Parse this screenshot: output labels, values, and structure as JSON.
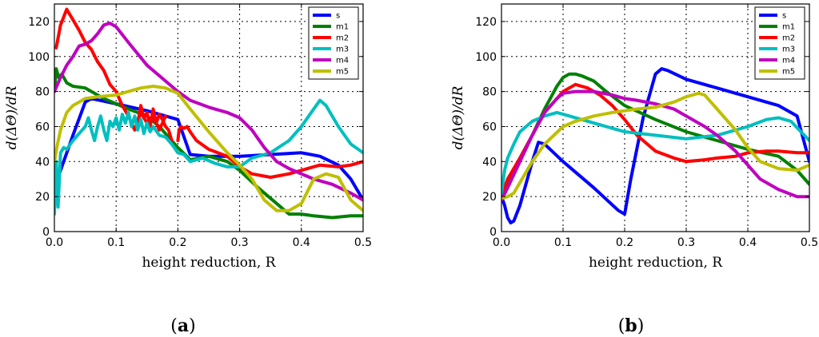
{
  "chart_data": [
    {
      "type": "line",
      "panel_label": "(a)",
      "xlabel": "height reduction, R",
      "ylabel": "d(ΔΘ)/dR",
      "xlim": [
        0,
        0.5
      ],
      "ylim": [
        0,
        130
      ],
      "xticks": [
        0.0,
        0.1,
        0.2,
        0.3,
        0.4,
        0.5
      ],
      "xtick_labels": [
        "0.0",
        "0.1",
        "0.2",
        "0.3",
        "0.4",
        "0.5"
      ],
      "yticks": [
        0,
        20,
        40,
        60,
        80,
        100,
        120
      ],
      "ytick_labels": [
        "0",
        "20",
        "40",
        "60",
        "80",
        "100",
        "120"
      ],
      "grid": true,
      "legend_position": "top-right",
      "series": [
        {
          "name": "s",
          "color": "#0000ff",
          "x": [
            0,
            0.01,
            0.03,
            0.05,
            0.06,
            0.1,
            0.15,
            0.2,
            0.22,
            0.25,
            0.3,
            0.35,
            0.4,
            0.43,
            0.46,
            0.48,
            0.5
          ],
          "y": [
            24,
            35,
            55,
            74,
            76,
            73,
            69,
            64,
            44,
            43,
            43,
            44,
            45,
            43,
            38,
            30,
            18
          ]
        },
        {
          "name": "m1",
          "color": "#008000",
          "x": [
            0,
            0.003,
            0.007,
            0.012,
            0.02,
            0.03,
            0.05,
            0.08,
            0.1,
            0.12,
            0.15,
            0.17,
            0.2,
            0.22,
            0.25,
            0.28,
            0.3,
            0.33,
            0.35,
            0.38,
            0.4,
            0.42,
            0.45,
            0.48,
            0.5
          ],
          "y": [
            80,
            93,
            88,
            90,
            85,
            83,
            82,
            76,
            73,
            70,
            66,
            60,
            48,
            41,
            43,
            40,
            35,
            25,
            19,
            10,
            10,
            9,
            8,
            9,
            9
          ]
        },
        {
          "name": "m2",
          "color": "#ff0000",
          "x": [
            0.2,
            0.202,
            0.205,
            0.21,
            0.215,
            0.22,
            0.23,
            0.25,
            0.28,
            0.3,
            0.32,
            0.35,
            0.38,
            0.4,
            0.43,
            0.46,
            0.48,
            0.5
          ],
          "y": [
            52,
            58,
            60,
            59,
            60,
            57,
            52,
            47,
            43,
            37,
            33,
            31,
            33,
            35,
            38,
            37,
            38,
            40
          ]
        },
        {
          "name": "m3",
          "color": "#00bfbf",
          "x": [
            0,
            0.003,
            0.006,
            0.01,
            0.015,
            0.02,
            0.03,
            0.04,
            0.05,
            0.055,
            0.06,
            0.065,
            0.07,
            0.075,
            0.08,
            0.085,
            0.09,
            0.095,
            0.1,
            0.105,
            0.11,
            0.115,
            0.12,
            0.125,
            0.13,
            0.135,
            0.14,
            0.145,
            0.15,
            0.155,
            0.16,
            0.17,
            0.18,
            0.19,
            0.2,
            0.21,
            0.22,
            0.24,
            0.26,
            0.28,
            0.3,
            0.32,
            0.35,
            0.38,
            0.4,
            0.42,
            0.43,
            0.44,
            0.46,
            0.48,
            0.5
          ],
          "y": [
            10,
            40,
            14,
            45,
            48,
            47,
            52,
            56,
            60,
            65,
            58,
            52,
            60,
            66,
            58,
            52,
            63,
            60,
            65,
            58,
            67,
            62,
            68,
            60,
            66,
            58,
            64,
            56,
            62,
            57,
            60,
            55,
            54,
            50,
            45,
            44,
            40,
            42,
            39,
            37,
            37,
            42,
            45,
            52,
            60,
            70,
            75,
            72,
            60,
            50,
            45
          ]
        },
        {
          "name": "m4",
          "color": "#bf00bf",
          "x": [
            0,
            0.01,
            0.02,
            0.03,
            0.04,
            0.05,
            0.06,
            0.07,
            0.08,
            0.09,
            0.1,
            0.12,
            0.15,
            0.18,
            0.2,
            0.22,
            0.25,
            0.28,
            0.3,
            0.32,
            0.34,
            0.36,
            0.38,
            0.4,
            0.42,
            0.45,
            0.48,
            0.5
          ],
          "y": [
            80,
            88,
            95,
            100,
            106,
            107,
            109,
            113,
            118,
            119,
            117,
            108,
            95,
            86,
            80,
            75,
            71,
            68,
            65,
            58,
            48,
            40,
            36,
            33,
            30,
            27,
            22,
            18
          ]
        },
        {
          "name": "m5",
          "color": "#bfbf00",
          "x": [
            0,
            0.005,
            0.01,
            0.02,
            0.03,
            0.04,
            0.05,
            0.07,
            0.1,
            0.12,
            0.14,
            0.16,
            0.18,
            0.2,
            0.22,
            0.25,
            0.28,
            0.3,
            0.32,
            0.34,
            0.36,
            0.38,
            0.4,
            0.42,
            0.44,
            0.46,
            0.48,
            0.5
          ],
          "y": [
            40,
            50,
            58,
            68,
            72,
            74,
            76,
            77,
            78,
            80,
            82,
            83,
            82,
            79,
            70,
            57,
            45,
            38,
            30,
            18,
            12,
            12,
            16,
            30,
            33,
            31,
            18,
            12
          ]
        }
      ],
      "red_segments": [
        {
          "x": [
            0.003,
            0.01,
            0.02,
            0.03,
            0.04,
            0.05,
            0.06,
            0.07,
            0.08,
            0.09,
            0.1,
            0.11,
            0.12,
            0.13,
            0.14,
            0.15,
            0.16,
            0.17,
            0.18
          ],
          "y": [
            105,
            118,
            127,
            121,
            115,
            108,
            104,
            97,
            92,
            84,
            80,
            72,
            66,
            58,
            68,
            62,
            66,
            58,
            66
          ]
        },
        {
          "x": [
            0.135,
            0.14,
            0.145,
            0.15,
            0.155,
            0.16,
            0.165,
            0.17,
            0.175,
            0.18,
            0.185,
            0.19
          ],
          "y": [
            62,
            72,
            65,
            68,
            60,
            70,
            62,
            67,
            64,
            60,
            58,
            52
          ]
        }
      ]
    },
    {
      "type": "line",
      "panel_label": "(b)",
      "xlabel": "height reduction, R",
      "ylabel": "d(ΔΘ)/dR",
      "xlim": [
        0,
        0.5
      ],
      "ylim": [
        0,
        130
      ],
      "xticks": [
        0.0,
        0.1,
        0.2,
        0.3,
        0.4,
        0.5
      ],
      "xtick_labels": [
        "0.0",
        "0.1",
        "0.2",
        "0.3",
        "0.4",
        "0.5"
      ],
      "yticks": [
        0,
        20,
        40,
        60,
        80,
        100,
        120
      ],
      "ytick_labels": [
        "0",
        "20",
        "40",
        "60",
        "80",
        "100",
        "120"
      ],
      "grid": true,
      "legend_position": "top-right",
      "series": [
        {
          "name": "s",
          "color": "#0000ff",
          "x": [
            0,
            0.005,
            0.01,
            0.015,
            0.02,
            0.03,
            0.05,
            0.06,
            0.07,
            0.1,
            0.15,
            0.19,
            0.2,
            0.21,
            0.23,
            0.25,
            0.26,
            0.27,
            0.3,
            0.35,
            0.4,
            0.45,
            0.48,
            0.5
          ],
          "y": [
            20,
            15,
            8,
            5,
            6,
            15,
            40,
            51,
            50,
            40,
            25,
            12,
            10,
            30,
            65,
            90,
            93,
            92,
            87,
            82,
            77,
            72,
            66,
            40
          ]
        },
        {
          "name": "m1",
          "color": "#008000",
          "x": [
            0,
            0.01,
            0.03,
            0.05,
            0.07,
            0.09,
            0.1,
            0.11,
            0.12,
            0.13,
            0.15,
            0.17,
            0.2,
            0.25,
            0.3,
            0.35,
            0.4,
            0.45,
            0.48,
            0.5
          ],
          "y": [
            20,
            28,
            42,
            55,
            70,
            83,
            88,
            90,
            90,
            89,
            86,
            80,
            72,
            64,
            57,
            52,
            47,
            43,
            35,
            27
          ]
        },
        {
          "name": "m2",
          "color": "#ff0000",
          "x": [
            0,
            0.01,
            0.03,
            0.05,
            0.07,
            0.1,
            0.12,
            0.14,
            0.16,
            0.18,
            0.2,
            0.22,
            0.25,
            0.28,
            0.3,
            0.33,
            0.35,
            0.38,
            0.4,
            0.43,
            0.45,
            0.48,
            0.5
          ],
          "y": [
            20,
            30,
            42,
            55,
            68,
            80,
            84,
            82,
            78,
            72,
            64,
            55,
            46,
            42,
            40,
            41,
            42,
            43,
            45,
            46,
            46,
            45,
            45
          ]
        },
        {
          "name": "m3",
          "color": "#00bfbf",
          "x": [
            0,
            0.005,
            0.01,
            0.02,
            0.03,
            0.05,
            0.07,
            0.09,
            0.1,
            0.15,
            0.2,
            0.25,
            0.3,
            0.35,
            0.4,
            0.43,
            0.45,
            0.47,
            0.5
          ],
          "y": [
            22,
            35,
            42,
            50,
            57,
            63,
            66,
            68,
            67,
            62,
            57,
            55,
            53,
            55,
            60,
            64,
            65,
            63,
            52
          ]
        },
        {
          "name": "m4",
          "color": "#bf00bf",
          "x": [
            0,
            0.01,
            0.03,
            0.05,
            0.07,
            0.09,
            0.1,
            0.12,
            0.15,
            0.18,
            0.2,
            0.22,
            0.25,
            0.28,
            0.3,
            0.33,
            0.35,
            0.38,
            0.4,
            0.42,
            0.45,
            0.48,
            0.5
          ],
          "y": [
            18,
            25,
            40,
            55,
            68,
            76,
            79,
            80,
            80,
            78,
            76,
            75,
            73,
            70,
            66,
            60,
            55,
            46,
            38,
            30,
            24,
            20,
            20
          ]
        },
        {
          "name": "m5",
          "color": "#bfbf00",
          "x": [
            0,
            0.01,
            0.02,
            0.03,
            0.05,
            0.07,
            0.1,
            0.12,
            0.15,
            0.18,
            0.2,
            0.22,
            0.25,
            0.28,
            0.3,
            0.31,
            0.32,
            0.33,
            0.35,
            0.38,
            0.4,
            0.42,
            0.45,
            0.48,
            0.5
          ],
          "y": [
            19,
            20,
            22,
            28,
            40,
            50,
            60,
            63,
            66,
            68,
            69,
            70,
            71,
            74,
            77,
            78,
            79,
            78,
            70,
            58,
            48,
            40,
            36,
            35,
            38
          ]
        }
      ],
      "red_segments": []
    }
  ]
}
